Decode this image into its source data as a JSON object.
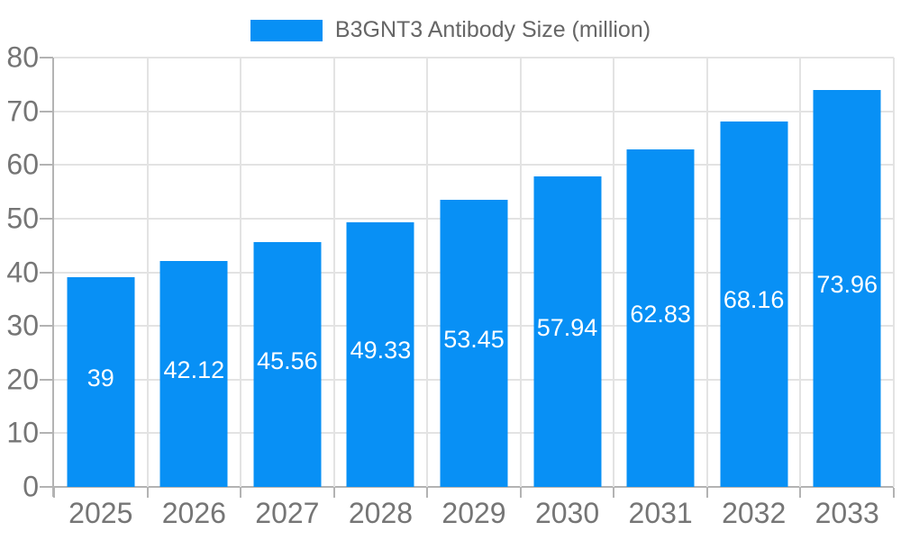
{
  "legend": {
    "label": "B3GNT3 Antibody Size (million)"
  },
  "colors": {
    "bar": "#0890f5",
    "grid": "#e3e3e3",
    "axis": "#b3b3b3",
    "tick_text": "#757575",
    "legend_text": "#666666",
    "value_text": "#ffffff",
    "background": "#ffffff"
  },
  "chart_data": {
    "type": "bar",
    "title": "B3GNT3 Antibody Size (million)",
    "categories": [
      "2025",
      "2026",
      "2027",
      "2028",
      "2029",
      "2030",
      "2031",
      "2032",
      "2033"
    ],
    "values": [
      39,
      42.12,
      45.56,
      49.33,
      53.45,
      57.94,
      62.83,
      68.16,
      73.96
    ],
    "value_labels": [
      "39",
      "42.12",
      "45.56",
      "49.33",
      "53.45",
      "57.94",
      "62.83",
      "68.16",
      "73.96"
    ],
    "xlabel": "",
    "ylabel": "",
    "ylim": [
      0,
      80
    ],
    "y_ticks": [
      0,
      10,
      20,
      30,
      40,
      50,
      60,
      70,
      80
    ],
    "grid": true,
    "legend_position": "top"
  }
}
